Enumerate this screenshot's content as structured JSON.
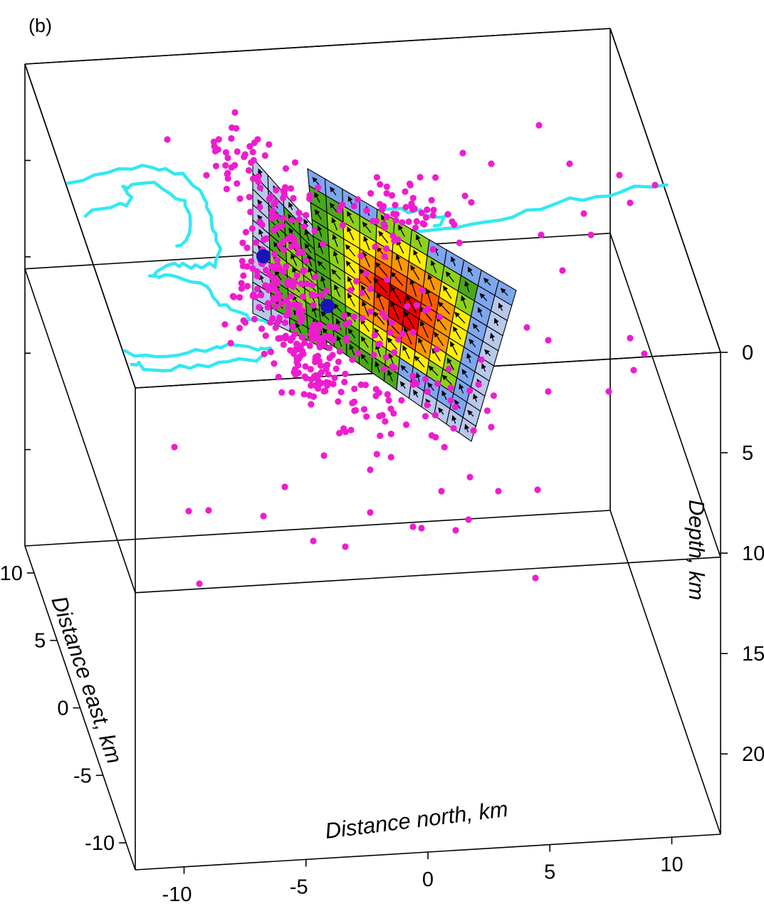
{
  "panel_label": "(b)",
  "chart_data": {
    "type": "scatter-3d",
    "title": "",
    "xlabel": "Distance north, km",
    "ylabel": "Distance east, km",
    "zlabel": "Depth, km",
    "xlim": [
      -12,
      12
    ],
    "ylim": [
      -12,
      12
    ],
    "zlim": [
      0,
      24
    ],
    "x_ticks": [
      -10,
      -5,
      0,
      5,
      10
    ],
    "y_ticks": [
      10,
      5,
      0,
      -5,
      -10
    ],
    "z_ticks": [
      0,
      5,
      10,
      15,
      20
    ],
    "grid": false,
    "legend": "none",
    "colors": {
      "aftershocks": "#ee1ccf",
      "surface_trace": "#33e8f2",
      "hypocenters": "#1a14b8",
      "slip_scale": [
        "#b8c8ea",
        "#7ea6ee",
        "#4aa818",
        "#8ed01c",
        "#ffee00",
        "#ff9800",
        "#ff5a00",
        "#ee0000"
      ]
    }
  }
}
